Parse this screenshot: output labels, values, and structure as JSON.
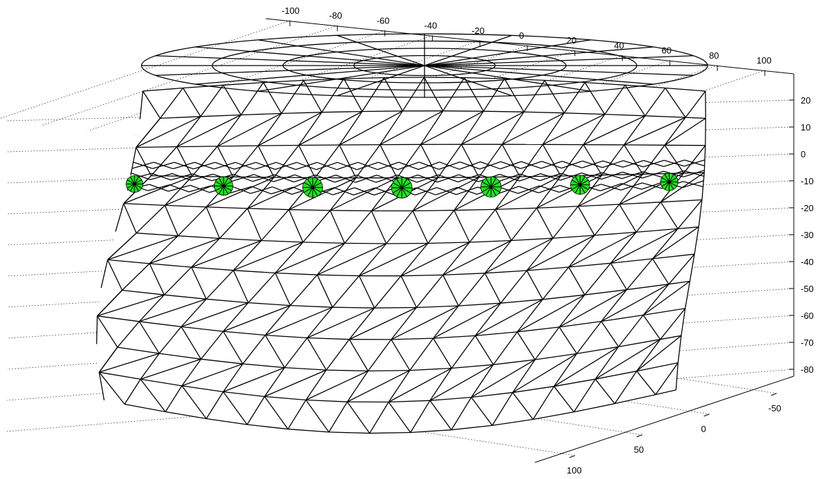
{
  "figure": {
    "background_color": "#ffffff",
    "mesh_color": "#000000",
    "sensor_color": "#22e022"
  },
  "axes": {
    "x": {
      "ticks": [
        "-100",
        "-80",
        "-60",
        "-40",
        "-20",
        "0",
        "20",
        "40",
        "60",
        "80",
        "100"
      ]
    },
    "z": {
      "ticks": [
        "20",
        "10",
        "0",
        "-10",
        "-20",
        "-30",
        "-40",
        "-50",
        "-60",
        "-70",
        "-80"
      ]
    },
    "y": {
      "ticks": [
        "100",
        "50",
        "0",
        "-50"
      ]
    },
    "grid": true
  },
  "mesh": {
    "shape": "triangulated cylindrical surface (wireframe)",
    "sensor_count": 7
  }
}
